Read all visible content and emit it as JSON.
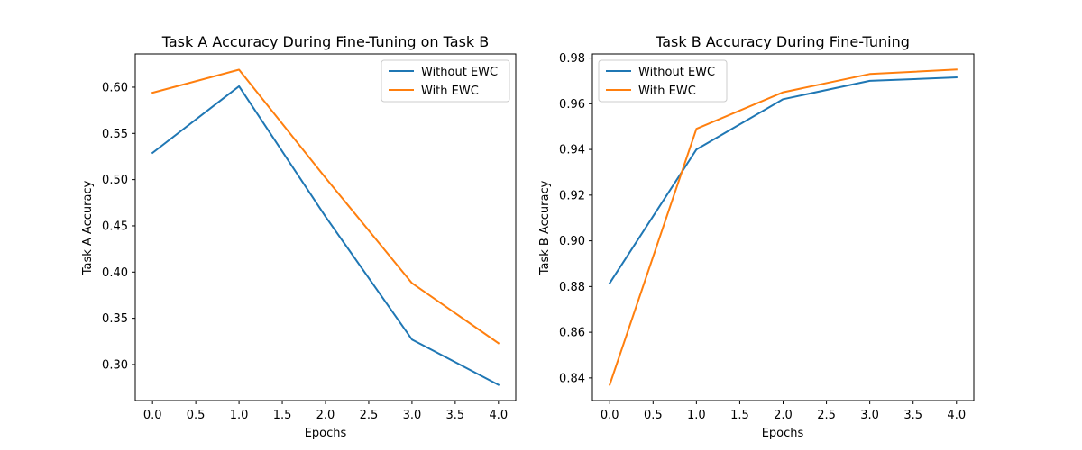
{
  "chart_data": [
    {
      "type": "line",
      "title": "Task A Accuracy During Fine-Tuning on Task B",
      "xlabel": "Epochs",
      "ylabel": "Task A Accuracy",
      "x": [
        0,
        1,
        2,
        3,
        4
      ],
      "xlim": [
        -0.2,
        4.2
      ],
      "ylim": [
        0.261,
        0.636
      ],
      "xticks": [
        0.0,
        0.5,
        1.0,
        1.5,
        2.0,
        2.5,
        3.0,
        3.5,
        4.0
      ],
      "xtick_labels": [
        "0.0",
        "0.5",
        "1.0",
        "1.5",
        "2.0",
        "2.5",
        "3.0",
        "3.5",
        "4.0"
      ],
      "yticks": [
        0.3,
        0.35,
        0.4,
        0.45,
        0.5,
        0.55,
        0.6
      ],
      "ytick_labels": [
        "0.30",
        "0.35",
        "0.40",
        "0.45",
        "0.50",
        "0.55",
        "0.60"
      ],
      "legend_position": "top-right",
      "grid": false,
      "series": [
        {
          "name": "Without EWC",
          "color": "#1f77b4",
          "values": [
            0.529,
            0.601,
            0.46,
            0.327,
            0.278
          ]
        },
        {
          "name": "With EWC",
          "color": "#ff7f0e",
          "values": [
            0.594,
            0.619,
            0.502,
            0.388,
            0.323
          ]
        }
      ]
    },
    {
      "type": "line",
      "title": "Task B Accuracy During Fine-Tuning",
      "xlabel": "Epochs",
      "ylabel": "Task B Accuracy",
      "x": [
        0,
        1,
        2,
        3,
        4
      ],
      "xlim": [
        -0.2,
        4.2
      ],
      "ylim": [
        0.8301,
        0.9818
      ],
      "xticks": [
        0.0,
        0.5,
        1.0,
        1.5,
        2.0,
        2.5,
        3.0,
        3.5,
        4.0
      ],
      "xtick_labels": [
        "0.0",
        "0.5",
        "1.0",
        "1.5",
        "2.0",
        "2.5",
        "3.0",
        "3.5",
        "4.0"
      ],
      "yticks": [
        0.84,
        0.86,
        0.88,
        0.9,
        0.92,
        0.94,
        0.96,
        0.98
      ],
      "ytick_labels": [
        "0.84",
        "0.86",
        "0.88",
        "0.90",
        "0.92",
        "0.94",
        "0.96",
        "0.98"
      ],
      "legend_position": "top-left",
      "grid": false,
      "series": [
        {
          "name": "Without EWC",
          "color": "#1f77b4",
          "values": [
            0.8815,
            0.94,
            0.962,
            0.97,
            0.9715
          ]
        },
        {
          "name": "With EWC",
          "color": "#ff7f0e",
          "values": [
            0.837,
            0.949,
            0.965,
            0.973,
            0.975
          ]
        }
      ]
    }
  ]
}
